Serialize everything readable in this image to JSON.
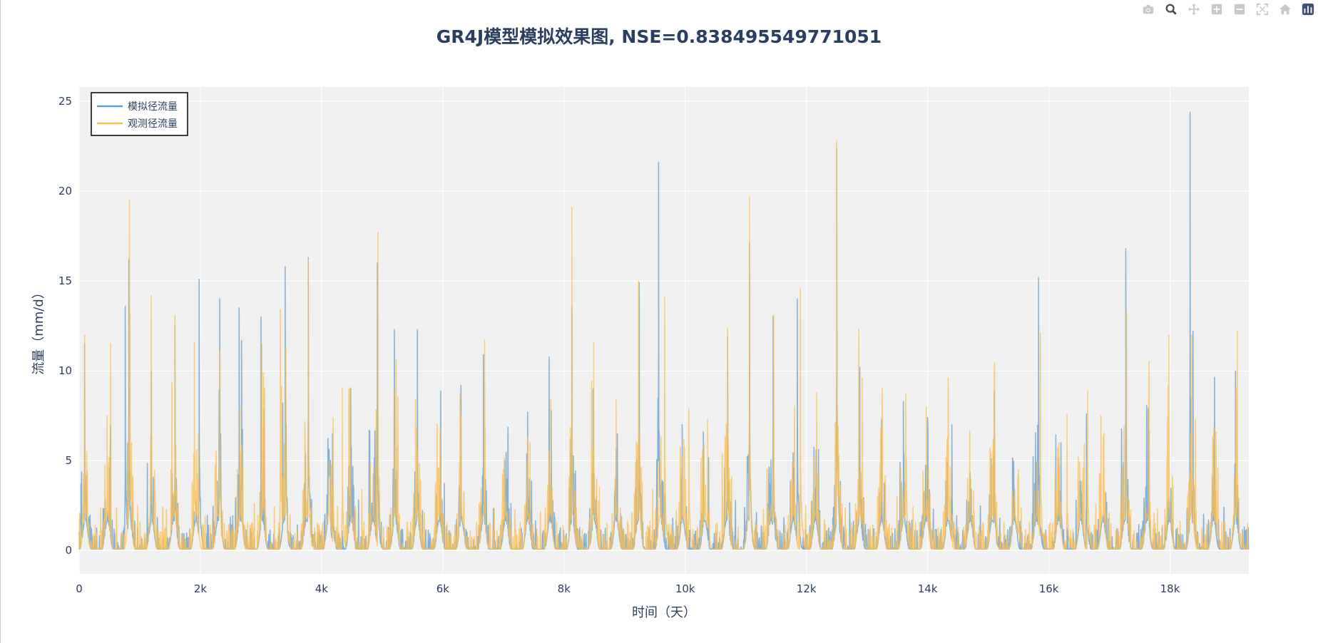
{
  "modebar": {
    "buttons": [
      {
        "name": "camera-icon"
      },
      {
        "name": "zoom-icon"
      },
      {
        "name": "pan-icon"
      },
      {
        "name": "zoom-in-icon"
      },
      {
        "name": "zoom-out-icon"
      },
      {
        "name": "autoscale-icon"
      },
      {
        "name": "home-icon"
      },
      {
        "name": "plotly-logo-icon"
      }
    ]
  },
  "chart_data": {
    "type": "line",
    "title": "GR4J模型模拟效果图, NSE=0.838495549771051",
    "xlabel": "时间（天）",
    "ylabel": "流量（mm/d）",
    "xlim": [
      0,
      19300
    ],
    "ylim": [
      -1.3,
      25.8
    ],
    "x_ticks": [
      {
        "value": 0,
        "label": "0"
      },
      {
        "value": 2000,
        "label": "2k"
      },
      {
        "value": 4000,
        "label": "4k"
      },
      {
        "value": 6000,
        "label": "6k"
      },
      {
        "value": 8000,
        "label": "8k"
      },
      {
        "value": 10000,
        "label": "10k"
      },
      {
        "value": 12000,
        "label": "12k"
      },
      {
        "value": 14000,
        "label": "14k"
      },
      {
        "value": 16000,
        "label": "16k"
      },
      {
        "value": 18000,
        "label": "18k"
      }
    ],
    "y_ticks": [
      {
        "value": 0,
        "label": "0"
      },
      {
        "value": 5,
        "label": "5"
      },
      {
        "value": 10,
        "label": "10"
      },
      {
        "value": 15,
        "label": "15"
      },
      {
        "value": 20,
        "label": "20"
      },
      {
        "value": 25,
        "label": "25"
      }
    ],
    "grid": true,
    "legend_position": "top-left",
    "colors": {
      "plot_bg": "#f0f0f0",
      "grid": "#ffffff",
      "text": "#2a3f5f"
    },
    "series": [
      {
        "name": "模拟径流量",
        "color": "#5f9ccd",
        "peaks": [
          [
            30,
            3.7
          ],
          [
            90,
            11.5
          ],
          [
            760,
            13.6
          ],
          [
            820,
            16.2
          ],
          [
            1190,
            10.0
          ],
          [
            1580,
            12.5
          ],
          [
            1980,
            15.1
          ],
          [
            2320,
            14.0
          ],
          [
            2640,
            13.5
          ],
          [
            2680,
            11.7
          ],
          [
            3000,
            13.0
          ],
          [
            3400,
            15.8
          ],
          [
            3780,
            16.3
          ],
          [
            4180,
            6.5
          ],
          [
            4480,
            9.0
          ],
          [
            4920,
            16.0
          ],
          [
            5200,
            12.3
          ],
          [
            5580,
            12.3
          ],
          [
            6300,
            9.2
          ],
          [
            6670,
            10.9
          ],
          [
            7020,
            5.0
          ],
          [
            7400,
            7.7
          ],
          [
            7790,
            7.8
          ],
          [
            8130,
            13.6
          ],
          [
            8480,
            9.0
          ],
          [
            8880,
            6.5
          ],
          [
            9240,
            14.9
          ],
          [
            9560,
            21.6
          ],
          [
            9950,
            7.0
          ],
          [
            10300,
            6.6
          ],
          [
            10700,
            11.9
          ],
          [
            11060,
            17.1
          ],
          [
            11450,
            13.0
          ],
          [
            11850,
            14.0
          ],
          [
            12500,
            22.4
          ],
          [
            12880,
            10.2
          ],
          [
            13240,
            7.3
          ],
          [
            13600,
            8.3
          ],
          [
            14000,
            7.4
          ],
          [
            14400,
            7.0
          ],
          [
            15100,
            8.9
          ],
          [
            15400,
            5.0
          ],
          [
            15830,
            15.2
          ],
          [
            16200,
            6.0
          ],
          [
            16620,
            7.6
          ],
          [
            17270,
            16.8
          ],
          [
            17640,
            7.9
          ],
          [
            18330,
            24.4
          ],
          [
            18380,
            12.2
          ],
          [
            19080,
            10.0
          ]
        ]
      },
      {
        "name": "观测径流量",
        "color": "#fdbd4e",
        "peaks": [
          [
            90,
            12.0
          ],
          [
            460,
            7.5
          ],
          [
            830,
            19.5
          ],
          [
            1190,
            14.2
          ],
          [
            1580,
            13.1
          ],
          [
            1900,
            11.6
          ],
          [
            2320,
            11.1
          ],
          [
            2650,
            8.0
          ],
          [
            3040,
            9.9
          ],
          [
            3320,
            13.4
          ],
          [
            3410,
            11.3
          ],
          [
            3780,
            16.2
          ],
          [
            4190,
            7.4
          ],
          [
            4340,
            9.0
          ],
          [
            4450,
            9.0
          ],
          [
            4930,
            17.7
          ],
          [
            5230,
            10.6
          ],
          [
            5550,
            8.4
          ],
          [
            6300,
            7.5
          ],
          [
            6700,
            6.8
          ],
          [
            7000,
            4.5
          ],
          [
            7440,
            6.0
          ],
          [
            7780,
            8.4
          ],
          [
            8130,
            19.1
          ],
          [
            8490,
            11.6
          ],
          [
            8860,
            8.4
          ],
          [
            9230,
            15.0
          ],
          [
            9660,
            14.1
          ],
          [
            10060,
            7.9
          ],
          [
            10370,
            7.3
          ],
          [
            10700,
            12.4
          ],
          [
            11060,
            19.7
          ],
          [
            11460,
            13.1
          ],
          [
            11900,
            14.6
          ],
          [
            12500,
            22.8
          ],
          [
            12920,
            9.6
          ],
          [
            13240,
            6.7
          ],
          [
            13640,
            8.7
          ],
          [
            13980,
            8.0
          ],
          [
            14340,
            9.6
          ],
          [
            15100,
            9.8
          ],
          [
            15500,
            4.5
          ],
          [
            15860,
            12.1
          ],
          [
            16300,
            7.6
          ],
          [
            16640,
            8.9
          ],
          [
            17280,
            13.3
          ],
          [
            17650,
            7.2
          ],
          [
            17980,
            12.0
          ],
          [
            18360,
            12.0
          ],
          [
            18760,
            6.6
          ],
          [
            19110,
            12.2
          ]
        ]
      }
    ]
  }
}
